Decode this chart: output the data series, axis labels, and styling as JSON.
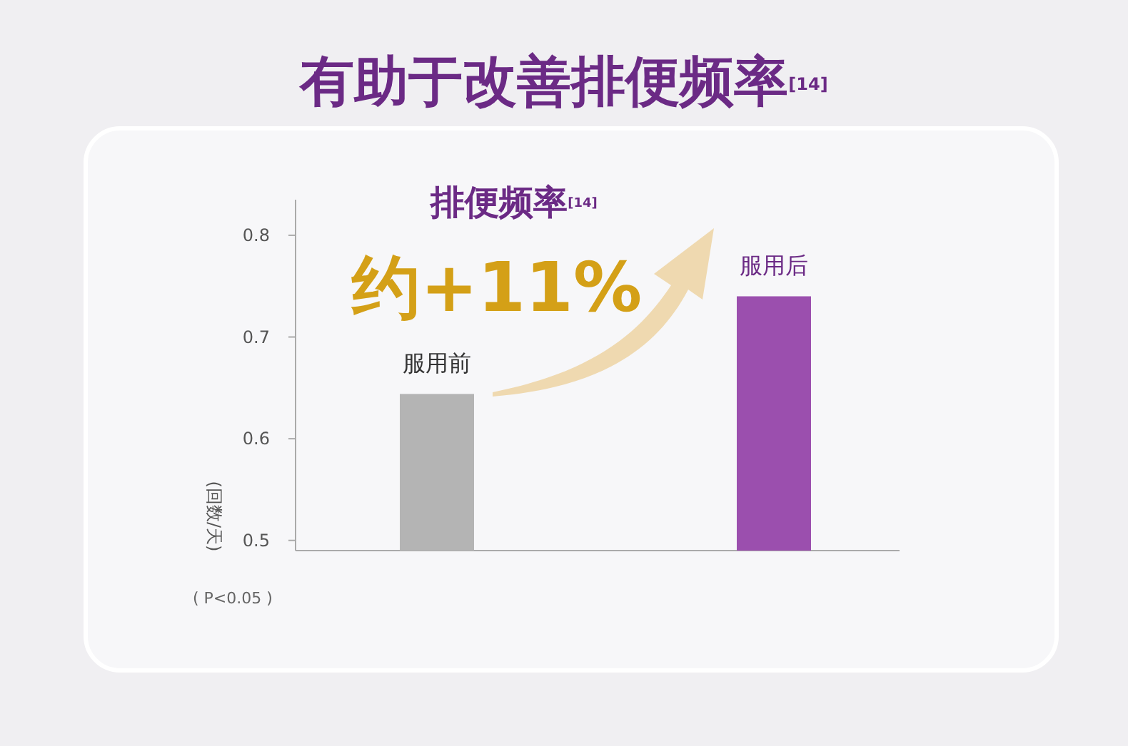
{
  "chart_data": {
    "type": "bar",
    "title": "有助于改善排便频率$^{[14]}$",
    "ylabel": "(回数/天)",
    "categories": [
      "服用前",
      "服用后"
    ],
    "values": [
      0.644,
      0.74
    ],
    "colors": [
      "#b4b4b4",
      "#9b4fae"
    ],
    "ylim": [
      0.49,
      0.835
    ],
    "yticks": [
      0.5,
      0.6,
      0.7,
      0.8
    ],
    "annotations": [
      "排便频率$^{[14]}$",
      "约+11%",
      "( P<0.05 )"
    ]
  }
}
